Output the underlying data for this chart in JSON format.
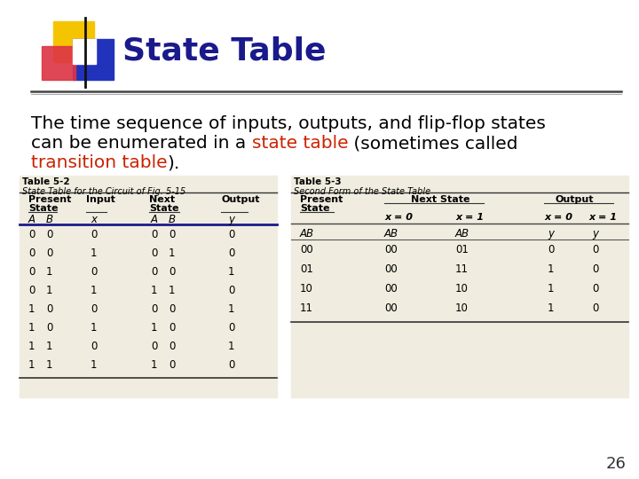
{
  "title": "State Table",
  "title_color": "#1a1a8c",
  "bg_color": "#ffffff",
  "slide_number": "26",
  "body_lines": [
    [
      "The time sequence of inputs, outputs, and flip-flop states",
      "black"
    ],
    [
      "can be enumerated in a ",
      "black",
      "state table",
      "red",
      " (sometimes called",
      "black"
    ],
    [
      "transition table",
      "red",
      ").",
      "black"
    ]
  ],
  "table1_title": "Table 5-2",
  "table1_subtitle": "State Table for the Circuit of Fig. 5-15",
  "table1_data": [
    [
      "0",
      "0",
      "0",
      "0",
      "0",
      "0"
    ],
    [
      "0",
      "0",
      "1",
      "0",
      "1",
      "0"
    ],
    [
      "0",
      "1",
      "0",
      "0",
      "0",
      "1"
    ],
    [
      "0",
      "1",
      "1",
      "1",
      "1",
      "0"
    ],
    [
      "1",
      "0",
      "0",
      "0",
      "0",
      "1"
    ],
    [
      "1",
      "0",
      "1",
      "1",
      "0",
      "0"
    ],
    [
      "1",
      "1",
      "0",
      "0",
      "0",
      "1"
    ],
    [
      "1",
      "1",
      "1",
      "1",
      "0",
      "0"
    ]
  ],
  "table2_title": "Table 5-3",
  "table2_subtitle": "Second Form of the State Table",
  "table2_data": [
    [
      "00",
      "00",
      "01",
      "0",
      "0"
    ],
    [
      "01",
      "00",
      "11",
      "1",
      "0"
    ],
    [
      "10",
      "00",
      "10",
      "1",
      "0"
    ],
    [
      "11",
      "00",
      "10",
      "1",
      "0"
    ]
  ],
  "table_bg": "#f0ede0",
  "red_color": "#cc2200",
  "dark_blue": "#1a1a8c",
  "body_fontsize": 14.5
}
